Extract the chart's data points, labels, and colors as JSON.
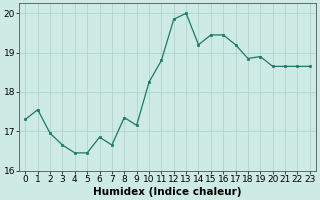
{
  "x": [
    0,
    1,
    2,
    3,
    4,
    5,
    6,
    7,
    8,
    9,
    10,
    11,
    12,
    13,
    14,
    15,
    16,
    17,
    18,
    19,
    20,
    21,
    22,
    23
  ],
  "y": [
    17.3,
    17.55,
    16.95,
    16.65,
    16.45,
    16.45,
    16.85,
    16.65,
    17.35,
    17.15,
    18.25,
    18.8,
    19.85,
    20.0,
    19.2,
    19.45,
    19.45,
    19.2,
    18.85,
    18.9,
    18.65,
    18.65,
    18.65,
    18.65
  ],
  "line_color": "#1a7a6a",
  "marker_color": "#1a7a6a",
  "bg_color": "#ceeae4",
  "grid_color": "#aacfc8",
  "xlabel": "Humidex (Indice chaleur)",
  "ylim": [
    16.0,
    20.25
  ],
  "xlim": [
    -0.5,
    23.5
  ],
  "yticks": [
    16,
    17,
    18,
    19,
    20
  ],
  "xticks": [
    0,
    1,
    2,
    3,
    4,
    5,
    6,
    7,
    8,
    9,
    10,
    11,
    12,
    13,
    14,
    15,
    16,
    17,
    18,
    19,
    20,
    21,
    22,
    23
  ],
  "tick_fontsize": 6.5,
  "xlabel_fontsize": 7.5,
  "spine_color": "#555555",
  "linewidth": 0.9,
  "markersize": 2.0
}
